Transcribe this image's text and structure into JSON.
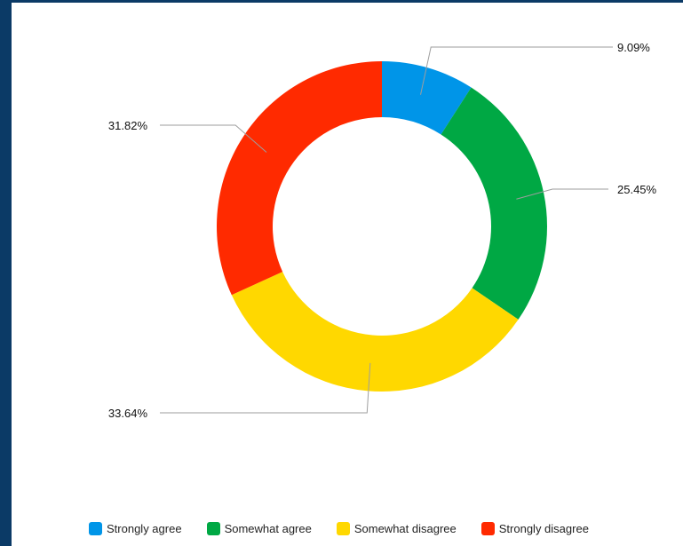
{
  "chart_data": {
    "type": "pie",
    "variant": "donut",
    "title": "",
    "series": [
      {
        "name": "Strongly agree",
        "value": 9.09,
        "label": "9.09%",
        "color": "#0095e8"
      },
      {
        "name": "Somewhat agree",
        "value": 25.45,
        "label": "25.45%",
        "color": "#00a844"
      },
      {
        "name": "Somewhat disagree",
        "value": 33.64,
        "label": "33.64%",
        "color": "#ffd800"
      },
      {
        "name": "Strongly disagree",
        "value": 31.82,
        "label": "31.82%",
        "color": "#ff2a00"
      }
    ],
    "legend_position": "bottom"
  },
  "colors": {
    "background": "#0b3a66",
    "panel": "#ffffff",
    "leader_line": "#9e9e9e"
  }
}
